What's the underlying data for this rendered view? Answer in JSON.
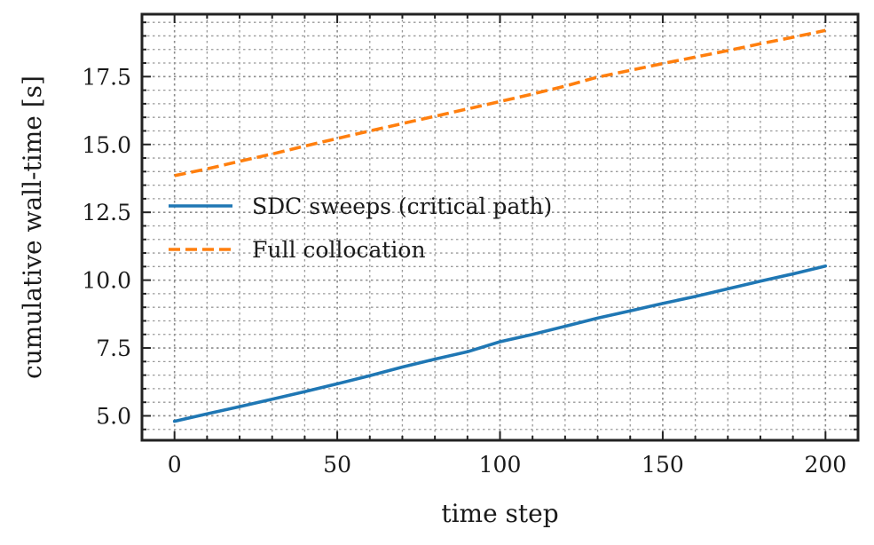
{
  "chart_data": {
    "type": "line",
    "title": "",
    "xlabel": "time step",
    "ylabel": "cumulative wall-time [s]",
    "xlim": [
      -10,
      210
    ],
    "ylim": [
      4.1,
      19.8
    ],
    "x_ticks": [
      0,
      50,
      100,
      150,
      200
    ],
    "x_tick_labels": [
      "0",
      "50",
      "100",
      "150",
      "200"
    ],
    "x_minor_step": 10,
    "y_ticks": [
      5.0,
      7.5,
      10.0,
      12.5,
      15.0,
      17.5
    ],
    "y_tick_labels": [
      "5.0",
      "7.5",
      "10.0",
      "12.5",
      "15.0",
      "17.5"
    ],
    "y_minor_step": 0.5,
    "grid": true,
    "legend_position": "center-left",
    "x": [
      0,
      10,
      20,
      30,
      40,
      50,
      60,
      70,
      80,
      90,
      100,
      110,
      120,
      130,
      140,
      150,
      160,
      170,
      180,
      190,
      200
    ],
    "series": [
      {
        "name": "SDC sweeps (critical path)",
        "color": "#1f77b4",
        "style": "solid",
        "values": [
          4.8,
          5.07,
          5.34,
          5.61,
          5.89,
          6.18,
          6.48,
          6.8,
          7.09,
          7.36,
          7.73,
          8.0,
          8.3,
          8.6,
          8.87,
          9.14,
          9.4,
          9.68,
          9.96,
          10.23,
          10.52
        ]
      },
      {
        "name": "Full collocation",
        "color": "#ff7f0e",
        "style": "dashed",
        "values": [
          13.85,
          14.1,
          14.38,
          14.65,
          14.94,
          15.22,
          15.5,
          15.77,
          16.04,
          16.31,
          16.58,
          16.86,
          17.15,
          17.48,
          17.73,
          17.98,
          18.22,
          18.46,
          18.71,
          18.95,
          19.2
        ]
      }
    ]
  }
}
